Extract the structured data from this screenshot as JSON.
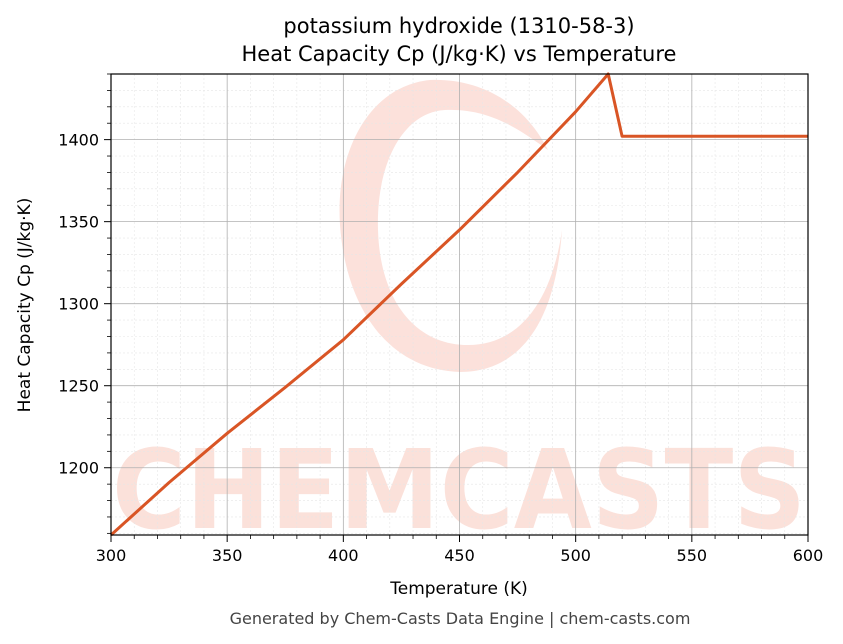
{
  "chart_data": {
    "type": "line",
    "title_line1": "potassium hydroxide (1310-58-3)",
    "title_line2": "Heat Capacity Cp (J/kg·K) vs Temperature",
    "xlabel": "Temperature (K)",
    "ylabel": "Heat Capacity Cp (J/kg·K)",
    "xlim": [
      300,
      600
    ],
    "ylim": [
      1159,
      1440
    ],
    "xticks": [
      300,
      350,
      400,
      450,
      500,
      550,
      600
    ],
    "yticks": [
      1200,
      1250,
      1300,
      1350,
      1400
    ],
    "grid": true,
    "series": [
      {
        "color": "#d95525",
        "x": [
          300,
          325,
          350,
          375,
          400,
          425,
          450,
          475,
          500,
          514,
          520,
          550,
          600
        ],
        "y": [
          1159,
          1191,
          1221,
          1249,
          1278,
          1312,
          1345,
          1380,
          1417,
          1440,
          1402,
          1402,
          1402
        ]
      }
    ],
    "watermark": "CHEMCASTS",
    "watermark_color": "#f9c9bd"
  },
  "footer": "Generated by Chem-Casts Data Engine | chem-casts.com"
}
